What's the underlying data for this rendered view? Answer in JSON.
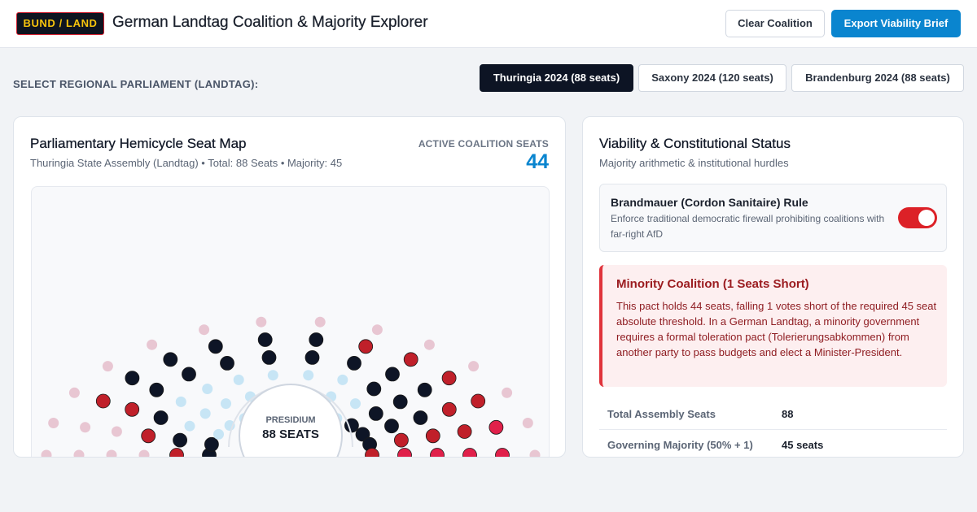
{
  "header": {
    "logo": "BUND / LAND",
    "title": "German Landtag Coalition & Majority Explorer",
    "clear_button": "Clear Coalition",
    "export_button": "Export Viability Brief"
  },
  "parliament_select": {
    "label": "SELECT REGIONAL PARLIAMENT (LANDTAG):",
    "tabs": [
      {
        "label": "Thuringia 2024 (88 seats)",
        "active": true
      },
      {
        "label": "Saxony 2024 (120 seats)",
        "active": false
      },
      {
        "label": "Brandenburg 2024 (88 seats)",
        "active": false
      }
    ]
  },
  "seat_map": {
    "title": "Parliamentary Hemicycle Seat Map",
    "subtitle": "Thuringia State Assembly (Landtag) • Total: 88 Seats • Majority: 45",
    "active_label": "ACTIVE COALITION SEATS",
    "active_value": "44",
    "center_label": "PRESIDIUM",
    "center_seats": "88 SEATS",
    "colors": {
      "left_pink_inactive": "#e8c6d2",
      "red": "#c0202a",
      "navy": "#0e1526",
      "light_blue_inactive": "#c7e5f5",
      "crimson": "#e0204a"
    }
  },
  "viability": {
    "title": "Viability & Constitutional Status",
    "subtitle": "Majority arithmetic & institutional hurdles",
    "rule": {
      "title": "Brandmauer (Cordon Sanitaire) Rule",
      "description": "Enforce traditional democratic firewall prohibiting coalitions with far-right AfD",
      "enabled": true
    },
    "alert": {
      "title": "Minority Coalition (1 Seats Short)",
      "body": "This pact holds 44 seats, falling 1 votes short of the required 45 seat absolute threshold. In a German Landtag, a minority government requires a formal toleration pact (Tolerierungsabkommen) from another party to pass budgets and elect a Minister-President."
    },
    "stats": [
      {
        "label": "Total Assembly Seats",
        "value": "88"
      },
      {
        "label": "Governing Majority (50% + 1)",
        "value": "45 seats"
      }
    ]
  }
}
